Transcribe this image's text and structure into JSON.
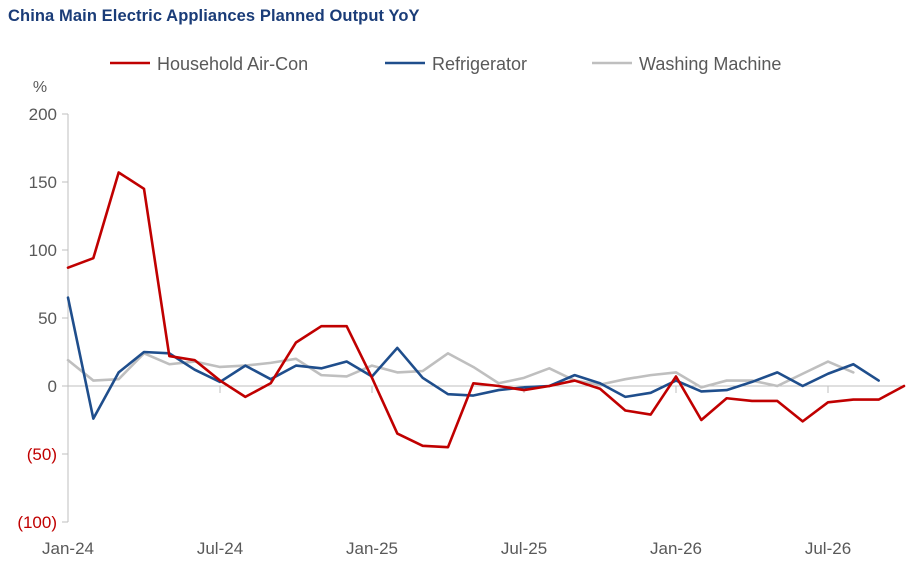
{
  "chart_data": {
    "type": "line",
    "title": "China Main Electric Appliances Planned Output YoY",
    "ylabel": "%",
    "ylim": [
      -100,
      200
    ],
    "yticks": [
      {
        "value": 200,
        "label": "200"
      },
      {
        "value": 150,
        "label": "150"
      },
      {
        "value": 100,
        "label": "100"
      },
      {
        "value": 50,
        "label": "50"
      },
      {
        "value": 0,
        "label": "0"
      },
      {
        "value": -50,
        "label": "(50)"
      },
      {
        "value": -100,
        "label": "(100)"
      }
    ],
    "x": [
      "Jan-24",
      "Feb-24",
      "Mar-24",
      "Apr-24",
      "May-24",
      "Jun-24",
      "Jul-24",
      "Aug-24",
      "Sep-24",
      "Oct-24",
      "Nov-24",
      "Dec-24",
      "Jan-25",
      "Feb-25",
      "Mar-25",
      "Apr-25",
      "May-25",
      "Jun-25",
      "Jul-25",
      "Aug-25",
      "Sep-25",
      "Oct-25",
      "Nov-25",
      "Dec-25",
      "Jan-26",
      "Feb-26",
      "Mar-26",
      "Apr-26",
      "May-26",
      "Jun-26",
      "Jul-26",
      "Aug-26",
      "Sep-26",
      "Oct-26"
    ],
    "xtick_labels": [
      {
        "index": 0,
        "label": "Jan-24"
      },
      {
        "index": 6,
        "label": "Jul-24"
      },
      {
        "index": 12,
        "label": "Jan-25"
      },
      {
        "index": 18,
        "label": "Jul-25"
      },
      {
        "index": 24,
        "label": "Jan-26"
      },
      {
        "index": 30,
        "label": "Jul-26"
      }
    ],
    "legend_position": "top",
    "grid": false,
    "series": [
      {
        "name": "Household Air-Con",
        "color": "#c00000",
        "values": [
          87,
          94,
          157,
          145,
          22,
          19,
          4,
          -8,
          2,
          32,
          44,
          44,
          6,
          -35,
          -44,
          -45,
          2,
          0,
          -3,
          0,
          4,
          -2,
          -18,
          -21,
          7,
          -25,
          -9,
          -11,
          -11,
          -26,
          -12,
          -10,
          -10,
          0
        ]
      },
      {
        "name": "Refrigerator",
        "color": "#1f4e8c",
        "values": [
          65,
          -24,
          10,
          25,
          24,
          12,
          3,
          15,
          5,
          15,
          13,
          18,
          7,
          28,
          6,
          -6,
          -7,
          -3,
          -1,
          0,
          8,
          2,
          -8,
          -5,
          4,
          -4,
          -3,
          3,
          10,
          0,
          9,
          16,
          4,
          null
        ]
      },
      {
        "name": "Washing Machine",
        "color": "#bfbfbf",
        "values": [
          19,
          4,
          5,
          24,
          16,
          18,
          14,
          15,
          17,
          20,
          8,
          7,
          15,
          10,
          11,
          24,
          14,
          2,
          6,
          13,
          4,
          1,
          5,
          8,
          10,
          -1,
          4,
          4,
          0,
          9,
          18,
          10,
          null,
          null
        ]
      }
    ]
  }
}
